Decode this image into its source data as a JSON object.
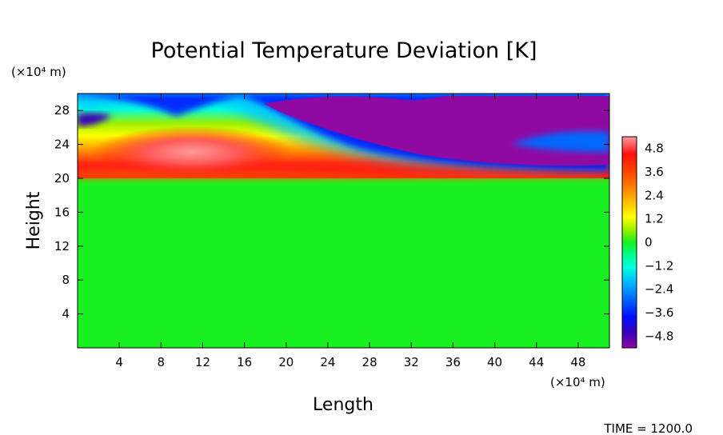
{
  "chart_data": {
    "type": "heatmap",
    "title": "Potential Temperature Deviation [K]",
    "xlabel": "Length",
    "ylabel": "Height",
    "x_unit": "(×10⁴ m)",
    "y_unit": "(×10⁴ m)",
    "x_ticks": [
      "4",
      "8",
      "12",
      "16",
      "20",
      "24",
      "28",
      "32",
      "36",
      "40",
      "44",
      "48"
    ],
    "y_ticks": [
      "4",
      "8",
      "12",
      "16",
      "20",
      "24",
      "28"
    ],
    "xlim": [
      0,
      51
    ],
    "ylim": [
      0,
      30
    ],
    "colorbar": {
      "ticks": [
        "4.8",
        "3.6",
        "2.4",
        "1.2",
        "0",
        "−1.2",
        "−2.4",
        "−3.6",
        "−4.8"
      ],
      "range": [
        -5.4,
        5.4
      ],
      "colors": [
        "#8f0aa3",
        "#3a00b8",
        "#0010ff",
        "#0068ff",
        "#00b8ff",
        "#00ffe0",
        "#00ff90",
        "#18f020",
        "#9cf000",
        "#ffff00",
        "#ffc000",
        "#ff8000",
        "#ff4000",
        "#ff1010",
        "#ff5a5a",
        "#ff9a9a"
      ]
    },
    "field_regions": [
      {
        "feature": "neutral layer below",
        "y_top": 20,
        "value": 0
      },
      {
        "feature": "warm anomaly",
        "x": 10.5,
        "y": 22.5,
        "value": 4.8
      },
      {
        "feature": "cool band top-left",
        "x": 0,
        "y": 27.5,
        "value": -3.6
      },
      {
        "feature": "cold anomaly right",
        "x_from": 17,
        "x_to": 51,
        "y_from": 21,
        "y_to": 29.5,
        "value": -4.8
      }
    ]
  },
  "footer": {
    "time_label": "TIME  =  1200.0"
  }
}
